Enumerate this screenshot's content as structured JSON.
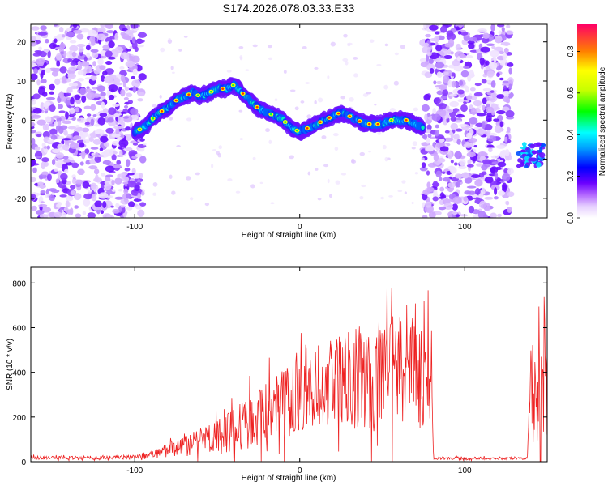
{
  "figure_title": "S174.2026.078.03.33.E33",
  "chart_data": [
    {
      "type": "heatmap",
      "title": "S174.2026.078.03.33.E33",
      "xlabel": "Height of straight line (km)",
      "ylabel": "Frequency (Hz)",
      "xlim": [
        -163,
        150
      ],
      "ylim": [
        -25,
        24.5
      ],
      "xticks": [
        -100,
        0,
        100
      ],
      "yticks": [
        -20,
        -10,
        0,
        10,
        20
      ],
      "colorbar": {
        "label": "Normalized spectral amplitude",
        "range": [
          0,
          0.93
        ],
        "ticks": [
          0.0,
          0.2,
          0.4,
          0.6,
          0.8
        ]
      },
      "noise_regions_km": [
        [
          -163,
          -95
        ],
        [
          75,
          128
        ]
      ],
      "signal_track": {
        "x_km": [
          -100,
          -95,
          -90,
          -85,
          -80,
          -75,
          -70,
          -65,
          -60,
          -55,
          -50,
          -45,
          -40,
          -35,
          -30,
          -25,
          -20,
          -15,
          -10,
          -5,
          0,
          5,
          10,
          15,
          20,
          25,
          30,
          35,
          40,
          45,
          50,
          55,
          60,
          65,
          70,
          75
        ],
        "freq_hz": [
          -3,
          -2,
          0,
          2,
          3,
          5,
          6,
          7,
          6,
          7,
          8,
          8,
          9,
          7,
          5,
          3,
          2,
          1,
          0,
          -2,
          -3,
          -2,
          -1,
          0,
          1,
          2,
          1,
          0,
          -1,
          -1,
          -1,
          0,
          0,
          0,
          -1,
          -2
        ]
      },
      "secondary_feature": {
        "x_km": [
          132,
          148
        ],
        "freq_hz": [
          -12,
          -6
        ]
      }
    },
    {
      "type": "line",
      "title": "",
      "xlabel": "Height of straight line (km)",
      "ylabel": "SNR (10 * v/v)",
      "xlim": [
        -163,
        150
      ],
      "ylim": [
        0,
        870
      ],
      "xticks": [
        -100,
        0,
        100
      ],
      "yticks": [
        0,
        200,
        400,
        600,
        800
      ],
      "series": [
        {
          "name": "SNR",
          "color": "#ee2222",
          "envelope_x_km": [
            -163,
            -120,
            -100,
            -90,
            -80,
            -70,
            -60,
            -50,
            -40,
            -30,
            -20,
            -10,
            0,
            10,
            20,
            30,
            40,
            50,
            60,
            70,
            80,
            81,
            135,
            138,
            140,
            145,
            150
          ],
          "envelope_mean": [
            18,
            18,
            20,
            30,
            50,
            70,
            90,
            110,
            140,
            180,
            220,
            260,
            300,
            330,
            350,
            370,
            380,
            390,
            400,
            380,
            350,
            15,
            15,
            20,
            320,
            330,
            330
          ],
          "envelope_spread": [
            10,
            10,
            12,
            25,
            40,
            60,
            80,
            100,
            120,
            150,
            170,
            190,
            200,
            220,
            250,
            280,
            300,
            320,
            330,
            300,
            300,
            8,
            8,
            10,
            300,
            320,
            330
          ]
        }
      ]
    }
  ]
}
